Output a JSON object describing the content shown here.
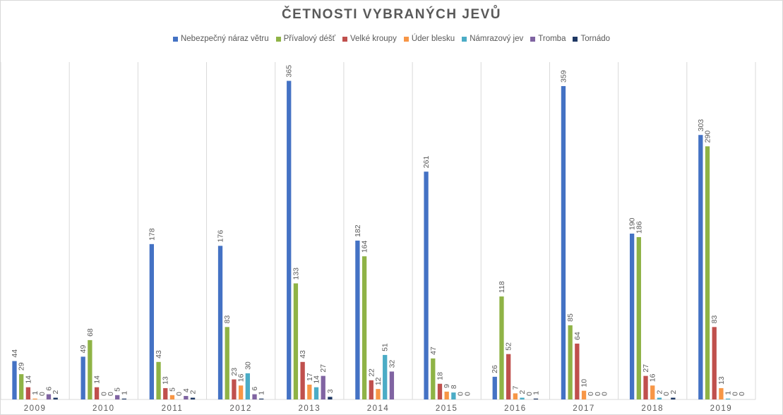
{
  "chart_data": {
    "type": "bar",
    "title": "ČETNOSTI VYBRANÝCH JEVŮ",
    "xlabel": "",
    "ylabel": "",
    "ylim": [
      0,
      380
    ],
    "grid": "vertical category separators",
    "legend_position": "top",
    "categories": [
      "2009",
      "2010",
      "2011",
      "2012",
      "2013",
      "2014",
      "2015",
      "2016",
      "2017",
      "2018",
      "2019"
    ],
    "series": [
      {
        "name": "Nebezpečný náraz větru",
        "color": "#4472c4",
        "values": [
          44,
          49,
          178,
          176,
          365,
          182,
          261,
          26,
          359,
          190,
          303
        ]
      },
      {
        "name": "Přívalový déšť",
        "color": "#8fb346",
        "values": [
          29,
          68,
          43,
          83,
          133,
          164,
          47,
          118,
          85,
          186,
          290
        ]
      },
      {
        "name": "Velké kroupy",
        "color": "#c0504d",
        "values": [
          14,
          14,
          13,
          23,
          43,
          22,
          18,
          52,
          64,
          27,
          83
        ]
      },
      {
        "name": "Úder blesku",
        "color": "#f79646",
        "values": [
          1,
          0,
          5,
          16,
          17,
          12,
          9,
          7,
          10,
          16,
          13
        ]
      },
      {
        "name": "Námrazový jev",
        "color": "#4bacc6",
        "values": [
          0,
          0,
          0,
          30,
          14,
          51,
          8,
          2,
          0,
          2,
          1
        ]
      },
      {
        "name": "Tromba",
        "color": "#8064a2",
        "values": [
          6,
          5,
          4,
          6,
          27,
          32,
          0,
          0,
          0,
          0,
          0
        ]
      },
      {
        "name": "Tornádo",
        "color": "#1f3864",
        "values": [
          2,
          1,
          2,
          1,
          3,
          0,
          0,
          1,
          0,
          2,
          0
        ]
      }
    ],
    "data_labels": [
      [
        "44",
        "49",
        "178",
        "176",
        "365",
        "182",
        "261",
        "26",
        "359",
        "190",
        "303"
      ],
      [
        "29",
        "68",
        "43",
        "83",
        "133",
        "164",
        "47",
        "118",
        "85",
        "186",
        "290"
      ],
      [
        "14",
        "14",
        "13",
        "23",
        "43",
        "22",
        "18",
        "52",
        "64",
        "27",
        "83"
      ],
      [
        "1",
        "0",
        "5",
        "16",
        "17",
        "12",
        "9",
        "7",
        "10",
        "16",
        "13"
      ],
      [
        "0",
        "0",
        "0",
        "30",
        "14",
        "51",
        "8",
        "2",
        "0",
        "2",
        "1"
      ],
      [
        "6",
        "5",
        "4",
        "6",
        "27",
        "32",
        "0",
        "0",
        "0",
        "0",
        "0"
      ],
      [
        "2",
        "1",
        "2",
        "1",
        "3",
        "",
        "0",
        "1",
        "0",
        "2",
        "0"
      ]
    ]
  }
}
